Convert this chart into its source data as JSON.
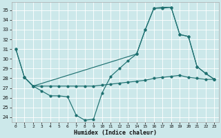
{
  "xlabel": "Humidex (Indice chaleur)",
  "bg_color": "#cce8ea",
  "grid_color": "#ffffff",
  "line_color": "#1e7070",
  "xlim": [
    -0.5,
    23.5
  ],
  "ylim": [
    23.5,
    35.8
  ],
  "yticks": [
    24,
    25,
    26,
    27,
    28,
    29,
    30,
    31,
    32,
    33,
    34,
    35
  ],
  "xticks": [
    0,
    1,
    2,
    3,
    4,
    5,
    6,
    7,
    8,
    9,
    10,
    11,
    12,
    13,
    14,
    15,
    16,
    17,
    18,
    19,
    20,
    21,
    22,
    23
  ],
  "line1_x": [
    0,
    1,
    2,
    3,
    4,
    5,
    6,
    7,
    8,
    9,
    10,
    11,
    12,
    13,
    14,
    15,
    16,
    17,
    18,
    19,
    20,
    21,
    22,
    23
  ],
  "line1_y": [
    31.0,
    28.1,
    27.2,
    26.7,
    26.2,
    26.2,
    26.1,
    24.2,
    23.7,
    23.8,
    26.5,
    28.2,
    29.0,
    29.8,
    30.5,
    33.0,
    35.2,
    35.2,
    35.3,
    32.5,
    32.3,
    29.2,
    28.5,
    27.9
  ],
  "line2_x": [
    1,
    2,
    3,
    4,
    5,
    6,
    7,
    8,
    9,
    10,
    11,
    12,
    13,
    14,
    15,
    16,
    17,
    18,
    19,
    20,
    21,
    22,
    23
  ],
  "line2_y": [
    28.1,
    27.2,
    27.2,
    27.2,
    27.2,
    27.2,
    27.2,
    27.2,
    27.2,
    27.3,
    27.4,
    27.5,
    27.6,
    27.7,
    27.8,
    28.0,
    28.1,
    28.2,
    28.3,
    28.1,
    28.0,
    27.9,
    27.9
  ],
  "line3_x": [
    0,
    1,
    2,
    14,
    15,
    16,
    17,
    18,
    19,
    20,
    21,
    22,
    23
  ],
  "line3_y": [
    31.0,
    28.1,
    27.2,
    30.5,
    33.0,
    35.2,
    35.3,
    35.3,
    32.5,
    32.3,
    29.2,
    28.5,
    27.9
  ]
}
